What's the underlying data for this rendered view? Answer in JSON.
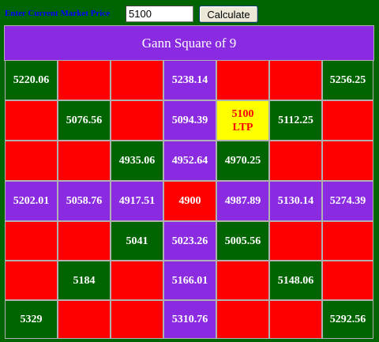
{
  "header": {
    "prompt_label": "Enter Current Market Price",
    "price_value": "5100",
    "calculate_label": "Calculate"
  },
  "table": {
    "title": "Gann Square of 9",
    "colors": {
      "green": "#006400",
      "red": "#ff0000",
      "purple": "#8a2be2",
      "yellow": "#ffff00"
    },
    "rows": [
      [
        {
          "text": "5220.06",
          "color": "green"
        },
        {
          "text": "",
          "color": "red"
        },
        {
          "text": "",
          "color": "red"
        },
        {
          "text": "5238.14",
          "color": "purple"
        },
        {
          "text": "",
          "color": "red"
        },
        {
          "text": "",
          "color": "red"
        },
        {
          "text": "5256.25",
          "color": "green"
        }
      ],
      [
        {
          "text": "",
          "color": "red"
        },
        {
          "text": "5076.56",
          "color": "green"
        },
        {
          "text": "",
          "color": "red"
        },
        {
          "text": "5094.39",
          "color": "purple"
        },
        {
          "text": "5100",
          "sub": "LTP",
          "color": "yellow"
        },
        {
          "text": "5112.25",
          "color": "green"
        },
        {
          "text": "",
          "color": "red"
        }
      ],
      [
        {
          "text": "",
          "color": "red"
        },
        {
          "text": "",
          "color": "red"
        },
        {
          "text": "4935.06",
          "color": "green"
        },
        {
          "text": "4952.64",
          "color": "purple"
        },
        {
          "text": "4970.25",
          "color": "green"
        },
        {
          "text": "",
          "color": "red"
        },
        {
          "text": "",
          "color": "red"
        }
      ],
      [
        {
          "text": "5202.01",
          "color": "purple"
        },
        {
          "text": "5058.76",
          "color": "purple"
        },
        {
          "text": "4917.51",
          "color": "purple"
        },
        {
          "text": "4900",
          "color": "red"
        },
        {
          "text": "4987.89",
          "color": "purple"
        },
        {
          "text": "5130.14",
          "color": "purple"
        },
        {
          "text": "5274.39",
          "color": "purple"
        }
      ],
      [
        {
          "text": "",
          "color": "red"
        },
        {
          "text": "",
          "color": "red"
        },
        {
          "text": "5041",
          "color": "green"
        },
        {
          "text": "5023.26",
          "color": "purple"
        },
        {
          "text": "5005.56",
          "color": "green"
        },
        {
          "text": "",
          "color": "red"
        },
        {
          "text": "",
          "color": "red"
        }
      ],
      [
        {
          "text": "",
          "color": "red"
        },
        {
          "text": "5184",
          "color": "green"
        },
        {
          "text": "",
          "color": "red"
        },
        {
          "text": "5166.01",
          "color": "purple"
        },
        {
          "text": "",
          "color": "red"
        },
        {
          "text": "5148.06",
          "color": "green"
        },
        {
          "text": "",
          "color": "red"
        }
      ],
      [
        {
          "text": "5329",
          "color": "green"
        },
        {
          "text": "",
          "color": "red"
        },
        {
          "text": "",
          "color": "red"
        },
        {
          "text": "5310.76",
          "color": "purple"
        },
        {
          "text": "",
          "color": "red"
        },
        {
          "text": "",
          "color": "red"
        },
        {
          "text": "5292.56",
          "color": "green"
        }
      ]
    ]
  }
}
